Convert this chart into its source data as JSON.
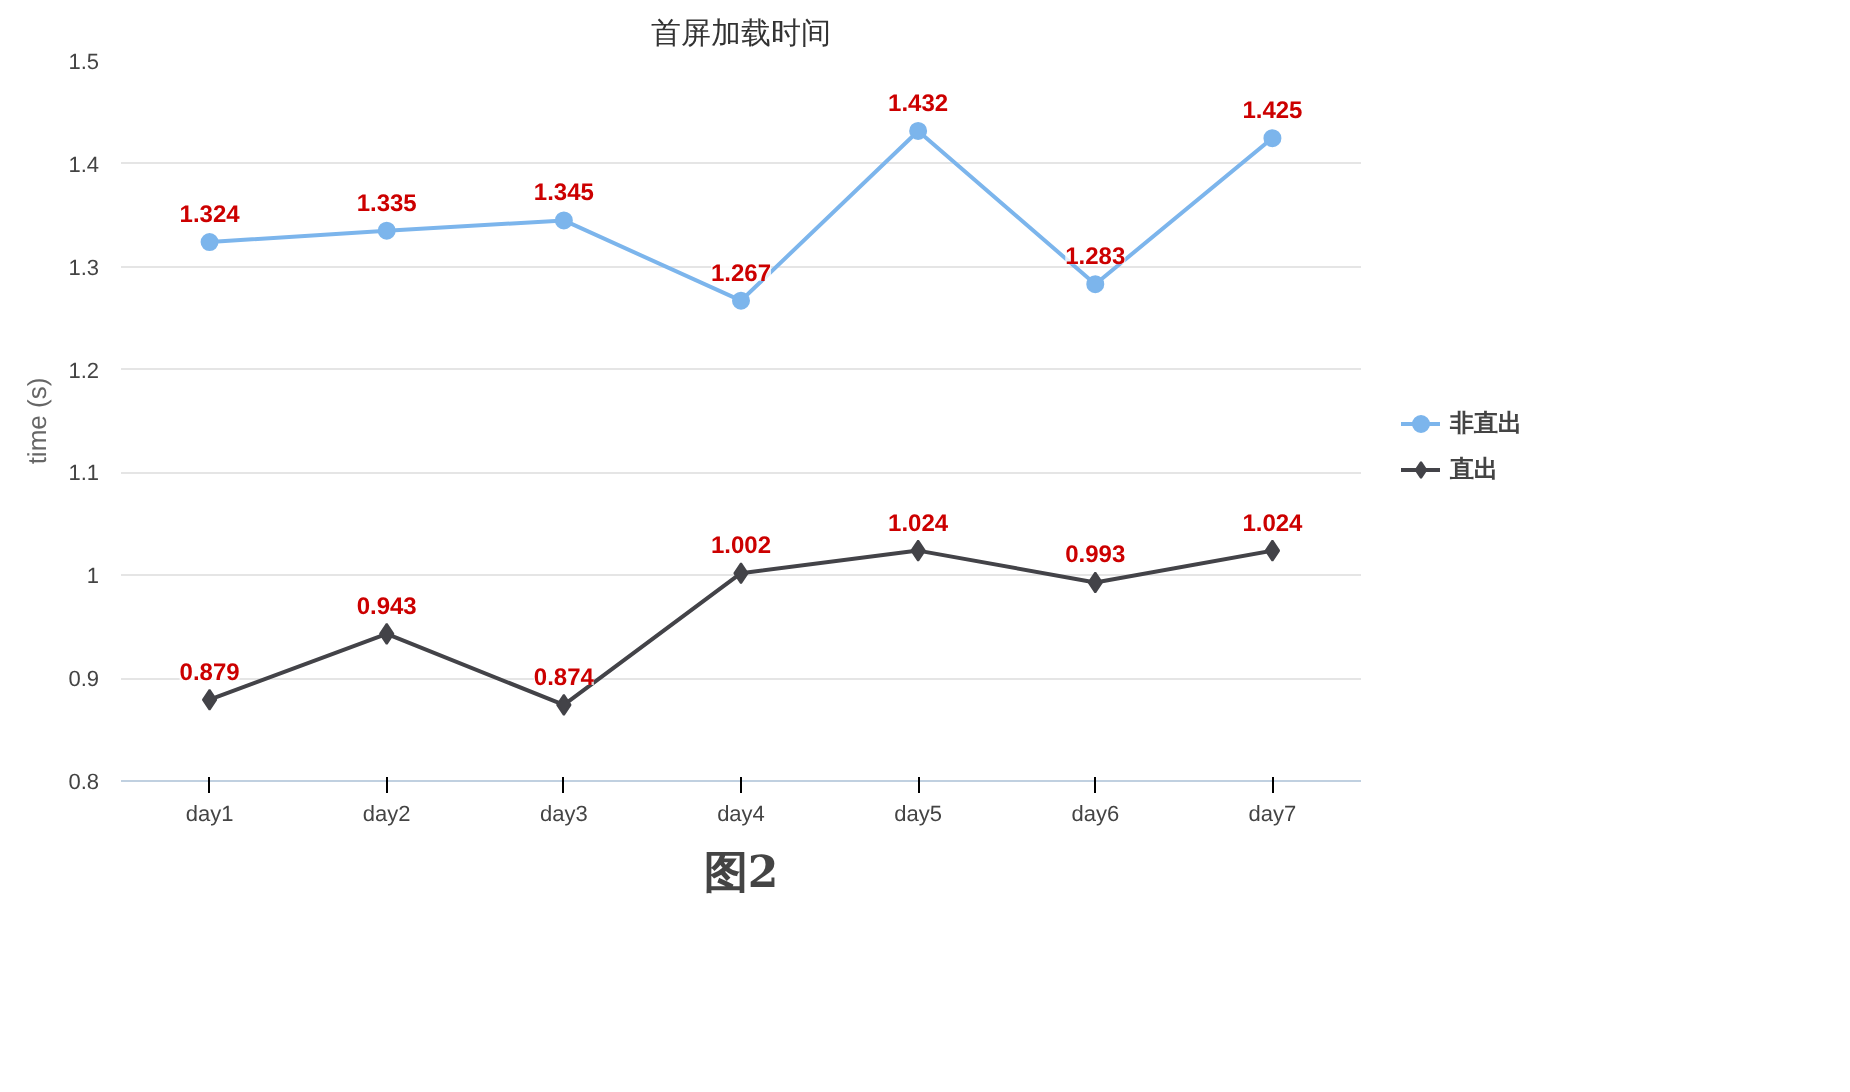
{
  "chart_data": {
    "type": "line",
    "title": "首屏加载时间",
    "ylabel": "time (s)",
    "categories": [
      "day1",
      "day2",
      "day3",
      "day4",
      "day5",
      "day6",
      "day7"
    ],
    "series": [
      {
        "name": "非直出",
        "color": "#7cb5ec",
        "values": [
          1.324,
          1.335,
          1.345,
          1.267,
          1.432,
          1.283,
          1.425
        ],
        "marker": "circle"
      },
      {
        "name": "直出",
        "color": "#434348",
        "values": [
          0.879,
          0.943,
          0.874,
          1.002,
          1.024,
          0.993,
          1.024
        ],
        "marker": "diamond"
      }
    ],
    "ylim": [
      0.8,
      1.5
    ],
    "yticks": [
      0.8,
      0.9,
      1,
      1.1,
      1.2,
      1.3,
      1.4,
      1.5
    ],
    "grid": "y",
    "legend": "right",
    "data_labels": true,
    "line_style": "solid",
    "annotations": [
      "图2"
    ]
  }
}
